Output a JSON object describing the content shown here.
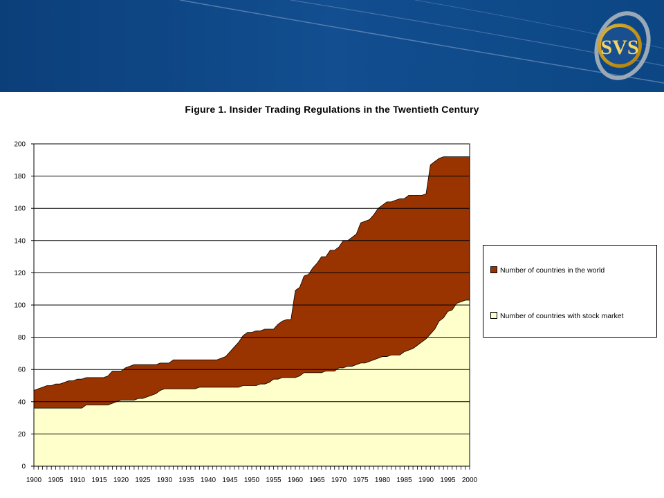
{
  "banner": {
    "logo_text": "SVS",
    "colors": {
      "background": "#0c4a8c",
      "logo_ring": "#c9a227",
      "logo_fill": "#1a4f8f"
    }
  },
  "chart_data": {
    "type": "area",
    "title": "Figure 1. Insider Trading Regulations in the Twentieth Century",
    "xlabel": "",
    "ylabel": "",
    "xlim": [
      1900,
      2000
    ],
    "ylim": [
      0,
      200
    ],
    "x_ticks": [
      1900,
      1905,
      1910,
      1915,
      1920,
      1925,
      1930,
      1935,
      1940,
      1945,
      1950,
      1955,
      1960,
      1965,
      1970,
      1975,
      1980,
      1985,
      1990,
      1995,
      2000
    ],
    "y_ticks": [
      0,
      20,
      40,
      60,
      80,
      100,
      120,
      140,
      160,
      180,
      200
    ],
    "grid": "horizontal",
    "legend_position": "right",
    "x": [
      1900,
      1901,
      1902,
      1903,
      1904,
      1905,
      1906,
      1907,
      1908,
      1909,
      1910,
      1911,
      1912,
      1913,
      1914,
      1915,
      1916,
      1917,
      1918,
      1919,
      1920,
      1921,
      1922,
      1923,
      1924,
      1925,
      1926,
      1927,
      1928,
      1929,
      1930,
      1931,
      1932,
      1933,
      1934,
      1935,
      1936,
      1937,
      1938,
      1939,
      1940,
      1941,
      1942,
      1943,
      1944,
      1945,
      1946,
      1947,
      1948,
      1949,
      1950,
      1951,
      1952,
      1953,
      1954,
      1955,
      1956,
      1957,
      1958,
      1959,
      1960,
      1961,
      1962,
      1963,
      1964,
      1965,
      1966,
      1967,
      1968,
      1969,
      1970,
      1971,
      1972,
      1973,
      1974,
      1975,
      1976,
      1977,
      1978,
      1979,
      1980,
      1981,
      1982,
      1983,
      1984,
      1985,
      1986,
      1987,
      1988,
      1989,
      1990,
      1991,
      1992,
      1993,
      1994,
      1995,
      1996,
      1997,
      1998,
      1999,
      2000
    ],
    "series": [
      {
        "name": "Number of countries in the world",
        "color": "#993300",
        "values": [
          47,
          48,
          49,
          50,
          50,
          51,
          51,
          52,
          53,
          53,
          54,
          54,
          55,
          55,
          55,
          55,
          55,
          56,
          59,
          59,
          59,
          61,
          62,
          63,
          63,
          63,
          63,
          63,
          63,
          64,
          64,
          64,
          66,
          66,
          66,
          66,
          66,
          66,
          66,
          66,
          66,
          66,
          66,
          67,
          68,
          71,
          74,
          77,
          81,
          83,
          83,
          84,
          84,
          85,
          85,
          85,
          88,
          90,
          91,
          91,
          109,
          111,
          118,
          119,
          123,
          126,
          130,
          130,
          134,
          134,
          136,
          140,
          140,
          142,
          144,
          151,
          152,
          153,
          156,
          160,
          162,
          164,
          164,
          165,
          166,
          166,
          168,
          168,
          168,
          168,
          169,
          187,
          189,
          191,
          192,
          192,
          192,
          192,
          192,
          192,
          192
        ]
      },
      {
        "name": "Number of countries with  stock market",
        "color": "#ffffcc",
        "values": [
          36,
          36,
          36,
          36,
          36,
          36,
          36,
          36,
          36,
          36,
          36,
          36,
          38,
          38,
          38,
          38,
          38,
          38,
          39,
          40,
          41,
          41,
          41,
          41,
          42,
          42,
          43,
          44,
          45,
          47,
          48,
          48,
          48,
          48,
          48,
          48,
          48,
          48,
          49,
          49,
          49,
          49,
          49,
          49,
          49,
          49,
          49,
          49,
          50,
          50,
          50,
          50,
          51,
          51,
          52,
          54,
          54,
          55,
          55,
          55,
          55,
          56,
          58,
          58,
          58,
          58,
          58,
          59,
          59,
          59,
          61,
          61,
          62,
          62,
          63,
          64,
          64,
          65,
          66,
          67,
          68,
          68,
          69,
          69,
          69,
          71,
          72,
          73,
          75,
          77,
          79,
          82,
          85,
          90,
          92,
          96,
          97,
          101,
          102,
          103,
          103
        ]
      }
    ]
  }
}
